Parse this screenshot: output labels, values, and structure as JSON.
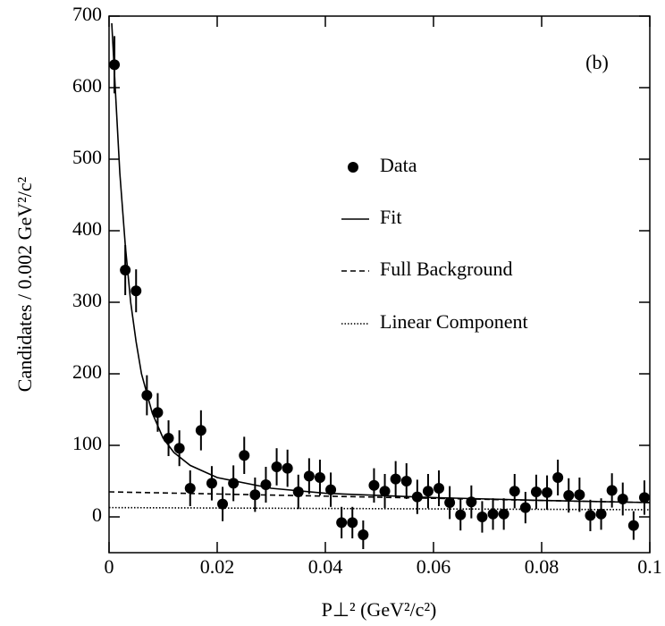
{
  "chart_data": {
    "type": "scatter",
    "annotation": "(b)",
    "x_label": "P⊥² (GeV²/c²)",
    "y_label": "Candidates / 0.002 GeV²/c²",
    "xlim": [
      0,
      0.1
    ],
    "ylim": [
      -50,
      700
    ],
    "xticks": [
      0,
      0.02,
      0.04,
      0.06,
      0.08,
      {
        "value": 0.1,
        "label": "0.1"
      }
    ],
    "yticks": [
      0,
      100,
      200,
      300,
      400,
      500,
      600,
      700
    ],
    "series": [
      {
        "name": "Data",
        "kind": "points",
        "color": "#000000",
        "x": [
          0.001,
          0.003,
          0.005,
          0.007,
          0.009,
          0.011,
          0.013,
          0.015,
          0.017,
          0.019,
          0.021,
          0.023,
          0.025,
          0.027,
          0.029,
          0.031,
          0.033,
          0.035,
          0.037,
          0.039,
          0.041,
          0.043,
          0.045,
          0.047,
          0.049,
          0.051,
          0.053,
          0.055,
          0.057,
          0.059,
          0.061,
          0.063,
          0.065,
          0.067,
          0.069,
          0.071,
          0.073,
          0.075,
          0.077,
          0.079,
          0.081,
          0.083,
          0.085,
          0.087,
          0.089,
          0.091,
          0.093,
          0.095,
          0.097,
          0.099
        ],
        "values": [
          632,
          345,
          316,
          170,
          146,
          110,
          96,
          40,
          121,
          47,
          18,
          47,
          86,
          31,
          45,
          70,
          68,
          35,
          57,
          55,
          38,
          -8,
          -8,
          -25,
          44,
          36,
          53,
          50,
          28,
          36,
          40,
          20,
          3,
          21,
          0,
          4,
          4,
          36,
          13,
          35,
          34,
          55,
          30,
          31,
          2,
          4,
          37,
          25,
          -12,
          27
        ],
        "errors": [
          40,
          35,
          30,
          28,
          27,
          25,
          25,
          25,
          28,
          24,
          24,
          25,
          26,
          24,
          25,
          26,
          26,
          24,
          25,
          25,
          24,
          22,
          22,
          20,
          24,
          24,
          25,
          25,
          24,
          24,
          25,
          23,
          22,
          23,
          22,
          22,
          22,
          24,
          22,
          24,
          24,
          25,
          24,
          24,
          22,
          22,
          24,
          23,
          20,
          24
        ]
      },
      {
        "name": "Fit",
        "kind": "line",
        "dash": "none",
        "color": "#000000",
        "x": [
          0.0005,
          0.001,
          0.002,
          0.003,
          0.004,
          0.005,
          0.006,
          0.008,
          0.01,
          0.012,
          0.015,
          0.02,
          0.03,
          0.04,
          0.06,
          0.08,
          0.1
        ],
        "values": [
          690,
          620,
          480,
          380,
          300,
          245,
          200,
          145,
          110,
          90,
          72,
          55,
          40,
          33,
          27,
          23,
          20
        ]
      },
      {
        "name": "Full Background",
        "kind": "line",
        "dash": "6 4",
        "color": "#000000",
        "x": [
          0,
          0.1
        ],
        "values": [
          35,
          20
        ]
      },
      {
        "name": "Linear Component",
        "kind": "line",
        "dash": "1.5 2",
        "color": "#000000",
        "x": [
          0,
          0.1
        ],
        "values": [
          13,
          10
        ]
      }
    ]
  }
}
